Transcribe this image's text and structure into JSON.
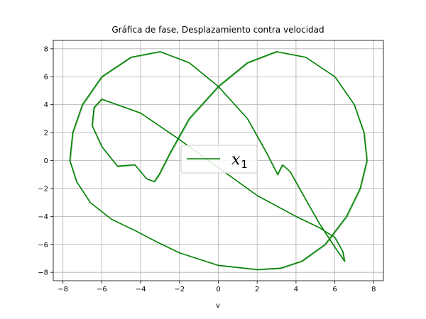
{
  "chart_data": {
    "type": "line",
    "title": "Gráfica de fase, Desplazamiento contra velocidad",
    "xlabel": "v",
    "ylabel": "",
    "xlim": [
      -8.5,
      8.5
    ],
    "ylim": [
      -8.6,
      8.6
    ],
    "xticks": [
      -8,
      -6,
      -4,
      -2,
      0,
      2,
      4,
      6,
      8
    ],
    "yticks": [
      -8,
      -6,
      -4,
      -2,
      0,
      2,
      4,
      6,
      8
    ],
    "xtick_labels": [
      "−8",
      "−6",
      "−4",
      "−2",
      "0",
      "2",
      "4",
      "6",
      "8"
    ],
    "ytick_labels": [
      "−8",
      "−6",
      "−4",
      "−2",
      "0",
      "2",
      "4",
      "6",
      "8"
    ],
    "grid": true,
    "legend": {
      "position": "center",
      "entries": [
        {
          "main": "x",
          "sub": "1"
        }
      ]
    },
    "series": [
      {
        "name": "x1",
        "color": "#008000",
        "x": [
          3.3,
          3.7,
          4.3,
          5.2,
          6.0,
          6.5,
          6.4,
          6.0,
          5.2,
          4.0,
          2.0,
          0.0,
          -2.0,
          -4.0,
          -5.2,
          -6.0,
          -6.4,
          -6.5,
          -6.0,
          -5.2,
          -4.3,
          -3.7,
          -3.3,
          -3.05,
          -2.5,
          -1.5,
          0.0,
          1.5,
          3.0,
          4.5,
          6.0,
          7.0,
          7.5,
          7.65,
          7.3,
          6.6,
          5.5,
          4.3,
          3.2,
          2.0,
          0.0,
          -2.0,
          -3.2,
          -4.3,
          -5.5,
          -6.6,
          -7.3,
          -7.65,
          -7.5,
          -7.0,
          -6.0,
          -4.5,
          -3.0,
          -1.5,
          0.0,
          1.5,
          2.5,
          3.05,
          3.3
        ],
        "y": [
          -0.3,
          -0.8,
          -2.3,
          -4.5,
          -6.2,
          -7.2,
          -6.5,
          -5.5,
          -4.8,
          -4.0,
          -2.5,
          -0.5,
          1.5,
          3.4,
          4.0,
          4.4,
          3.8,
          2.5,
          1.0,
          -0.4,
          -0.3,
          -1.3,
          -1.5,
          -1.0,
          0.5,
          3.0,
          5.3,
          7.0,
          7.8,
          7.4,
          6.0,
          4.0,
          2.0,
          0.0,
          -2.0,
          -4.0,
          -6.0,
          -7.2,
          -7.7,
          -7.8,
          -7.5,
          -6.6,
          -5.8,
          -5.0,
          -4.2,
          -3.0,
          -1.5,
          0.0,
          2.0,
          4.0,
          6.0,
          7.4,
          7.8,
          7.0,
          5.3,
          3.0,
          0.5,
          -1.0,
          -0.3
        ]
      }
    ]
  }
}
